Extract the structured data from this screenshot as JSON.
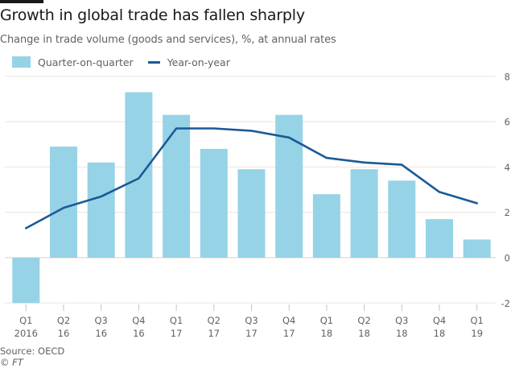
{
  "header": {
    "title": "Growth in global trade has fallen sharply",
    "subtitle": "Change in trade volume (goods and services), %, at annual rates"
  },
  "legend": {
    "items": [
      {
        "label": "Quarter-on-quarter",
        "type": "bar",
        "color": "#96d3e6"
      },
      {
        "label": "Year-on-year",
        "type": "line",
        "color": "#1a5a96"
      }
    ]
  },
  "footer": {
    "source": "Source: OECD",
    "copyright": "© FT"
  },
  "chart_data": {
    "type": "bar",
    "title": "Growth in global trade has fallen sharply",
    "subtitle": "Change in trade volume (goods and services), %, at annual rates",
    "xlabel": "",
    "ylabel": "",
    "categories": [
      [
        "Q1",
        "2016"
      ],
      [
        "Q2",
        "16"
      ],
      [
        "Q3",
        "16"
      ],
      [
        "Q4",
        "16"
      ],
      [
        "Q1",
        "17"
      ],
      [
        "Q2",
        "17"
      ],
      [
        "Q3",
        "17"
      ],
      [
        "Q4",
        "17"
      ],
      [
        "Q1",
        "18"
      ],
      [
        "Q2",
        "18"
      ],
      [
        "Q3",
        "18"
      ],
      [
        "Q4",
        "18"
      ],
      [
        "Q1",
        "19"
      ]
    ],
    "series": [
      {
        "name": "Quarter-on-quarter",
        "type": "bar",
        "color": "#96d3e6",
        "values": [
          -2.0,
          4.9,
          4.2,
          7.3,
          6.3,
          4.8,
          3.9,
          6.3,
          2.8,
          3.9,
          3.4,
          1.7,
          0.8
        ]
      },
      {
        "name": "Year-on-year",
        "type": "line",
        "color": "#1a5a96",
        "values": [
          1.3,
          2.2,
          2.7,
          3.5,
          5.7,
          5.7,
          5.6,
          5.3,
          4.4,
          4.2,
          4.1,
          2.9,
          2.4
        ]
      }
    ],
    "ylim": [
      -2,
      8
    ],
    "yticks": [
      -2,
      0,
      2,
      4,
      6,
      8
    ],
    "y_axis_side": "right",
    "grid": true,
    "legend_position": "top-left"
  }
}
